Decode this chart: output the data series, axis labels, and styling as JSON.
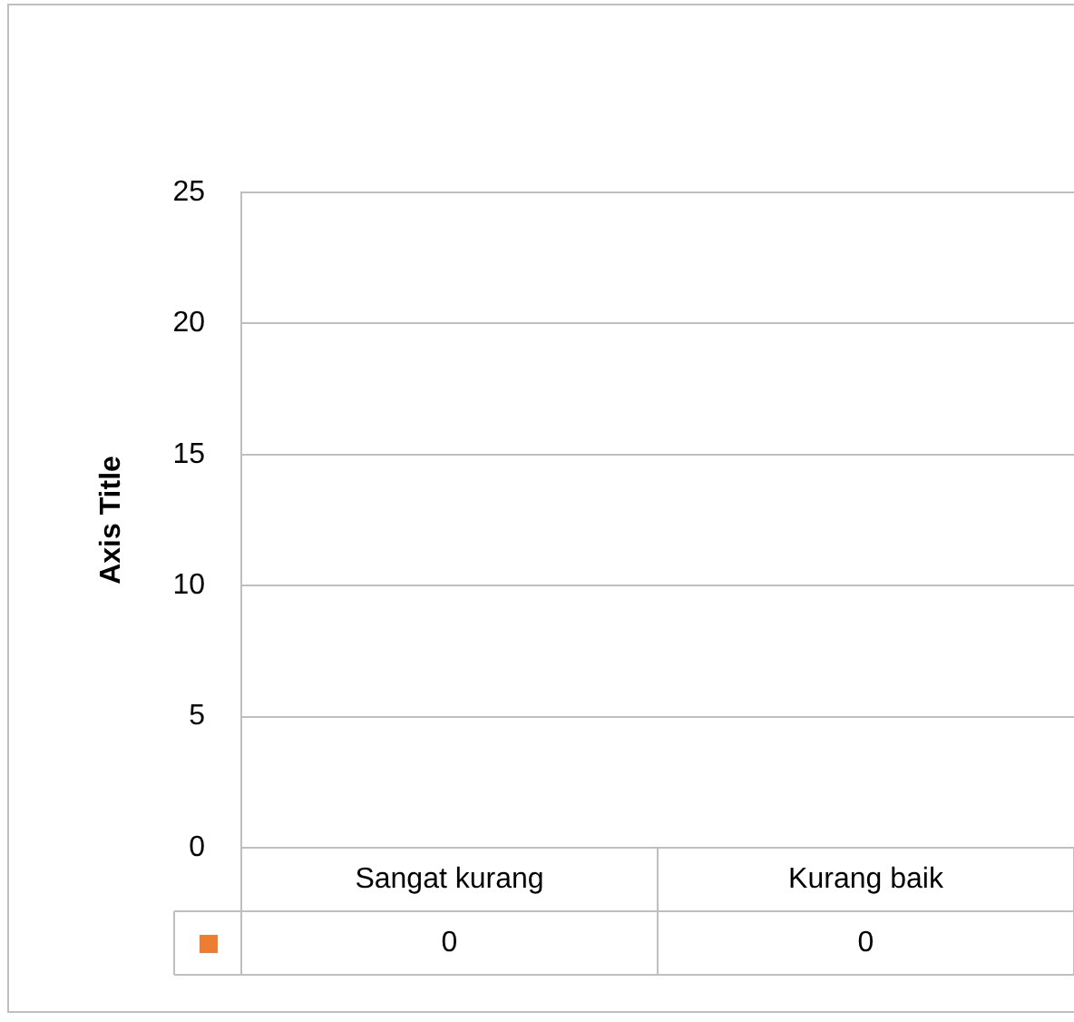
{
  "chart_data": {
    "type": "bar",
    "ylabel": "Axis Title",
    "categories": [
      "Sangat kurang",
      "Kurang baik"
    ],
    "series": [
      {
        "color": "#ed7d31",
        "values": [
          0,
          0
        ]
      }
    ],
    "ylim": [
      0,
      25
    ],
    "yticks": [
      0,
      5,
      10,
      15,
      20,
      25
    ],
    "grid": true,
    "data_labels": true,
    "legend": false
  }
}
